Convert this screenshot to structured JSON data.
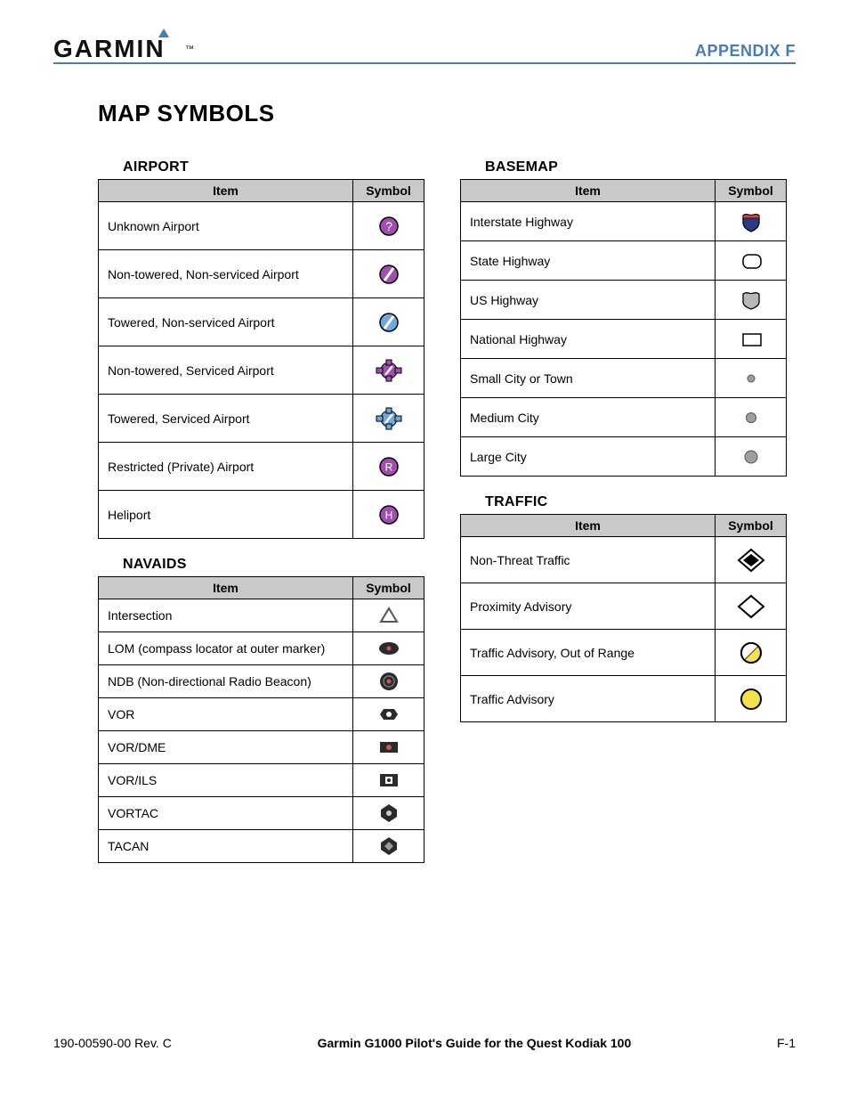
{
  "header": {
    "brand": "GARMIN",
    "appendix": "APPENDIX F"
  },
  "title": "MAP SYMBOLS",
  "colors": {
    "accent_blue": "#4a7bb5",
    "header_gray": "#c9c9c9",
    "border": "#000000",
    "magenta": "#a04eb0",
    "magenta_dark": "#7a2e8a",
    "light_blue": "#6fa8dc",
    "navy": "#2a3a8a",
    "shield_gray": "#b8b8b8",
    "city_gray": "#9e9e9e",
    "nav_dark": "#2b2b2b",
    "yellow": "#f4e24a",
    "white": "#ffffff"
  },
  "tables": {
    "airport": {
      "title": "AIRPORT",
      "item_header": "Item",
      "symbol_header": "Symbol",
      "rows": [
        {
          "label": "Unknown Airport",
          "symbol": "ap-unknown"
        },
        {
          "label": "Non-towered, Non-serviced Airport",
          "symbol": "ap-nt-ns"
        },
        {
          "label": "Towered, Non-serviced Airport",
          "symbol": "ap-t-ns"
        },
        {
          "label": "Non-towered, Serviced Airport",
          "symbol": "ap-nt-s"
        },
        {
          "label": "Towered, Serviced Airport",
          "symbol": "ap-t-s"
        },
        {
          "label": "Restricted (Private) Airport",
          "symbol": "ap-restricted"
        },
        {
          "label": "Heliport",
          "symbol": "ap-heli"
        }
      ]
    },
    "basemap": {
      "title": "BASEMAP",
      "item_header": "Item",
      "symbol_header": "Symbol",
      "rows": [
        {
          "label": "Interstate Highway",
          "symbol": "bm-interstate"
        },
        {
          "label": "State Highway",
          "symbol": "bm-state"
        },
        {
          "label": "US Highway",
          "symbol": "bm-us"
        },
        {
          "label": "National Highway",
          "symbol": "bm-national"
        },
        {
          "label": "Small City or Town",
          "symbol": "bm-small-city"
        },
        {
          "label": "Medium City",
          "symbol": "bm-med-city"
        },
        {
          "label": "Large City",
          "symbol": "bm-large-city"
        }
      ]
    },
    "navaids": {
      "title": "NAVAIDS",
      "item_header": "Item",
      "symbol_header": "Symbol",
      "rows": [
        {
          "label": "Intersection",
          "symbol": "nv-intersection"
        },
        {
          "label": "LOM (compass locator at outer marker)",
          "symbol": "nv-lom"
        },
        {
          "label": "NDB (Non-directional Radio Beacon)",
          "symbol": "nv-ndb"
        },
        {
          "label": "VOR",
          "symbol": "nv-vor"
        },
        {
          "label": "VOR/DME",
          "symbol": "nv-vordme"
        },
        {
          "label": "VOR/ILS",
          "symbol": "nv-vorils"
        },
        {
          "label": "VORTAC",
          "symbol": "nv-vortac"
        },
        {
          "label": "TACAN",
          "symbol": "nv-tacan"
        }
      ]
    },
    "traffic": {
      "title": "TRAFFIC",
      "item_header": "Item",
      "symbol_header": "Symbol",
      "rows": [
        {
          "label": "Non-Threat Traffic",
          "symbol": "tr-nonthreat"
        },
        {
          "label": "Proximity Advisory",
          "symbol": "tr-prox"
        },
        {
          "label": "Traffic Advisory, Out of Range",
          "symbol": "tr-oor"
        },
        {
          "label": "Traffic Advisory",
          "symbol": "tr-adv"
        }
      ]
    }
  },
  "footer": {
    "left": "190-00590-00  Rev. C",
    "center": "Garmin G1000 Pilot's Guide for the Quest Kodiak 100",
    "right": "F-1"
  }
}
